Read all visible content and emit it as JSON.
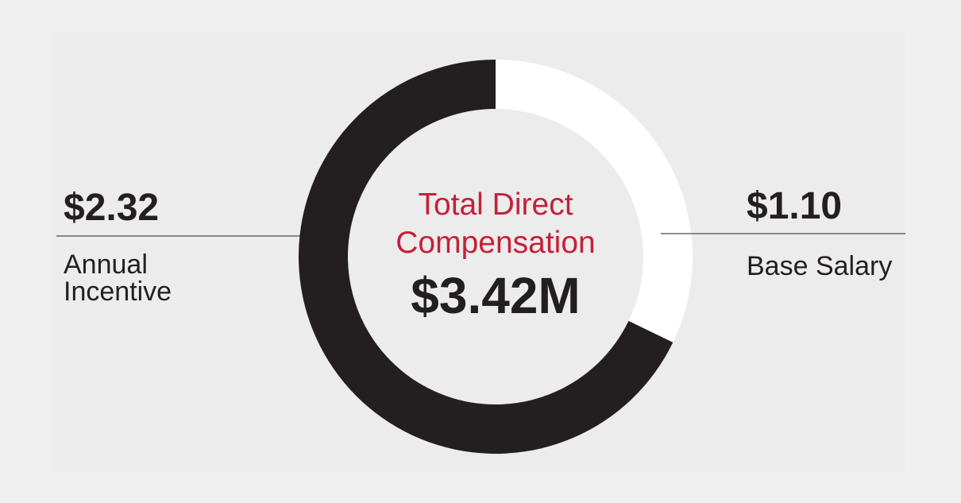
{
  "chart_data": {
    "type": "donut",
    "title": "Total Direct Compensation",
    "center_label": "$3.42M",
    "categories": [
      "Base Salary",
      "Annual Incentive"
    ],
    "values": [
      1.1,
      2.32
    ],
    "value_labels": [
      "$1.10",
      "$2.32"
    ],
    "colors": [
      "#ffffff",
      "#231f20"
    ],
    "title_color": "#c4203a"
  }
}
